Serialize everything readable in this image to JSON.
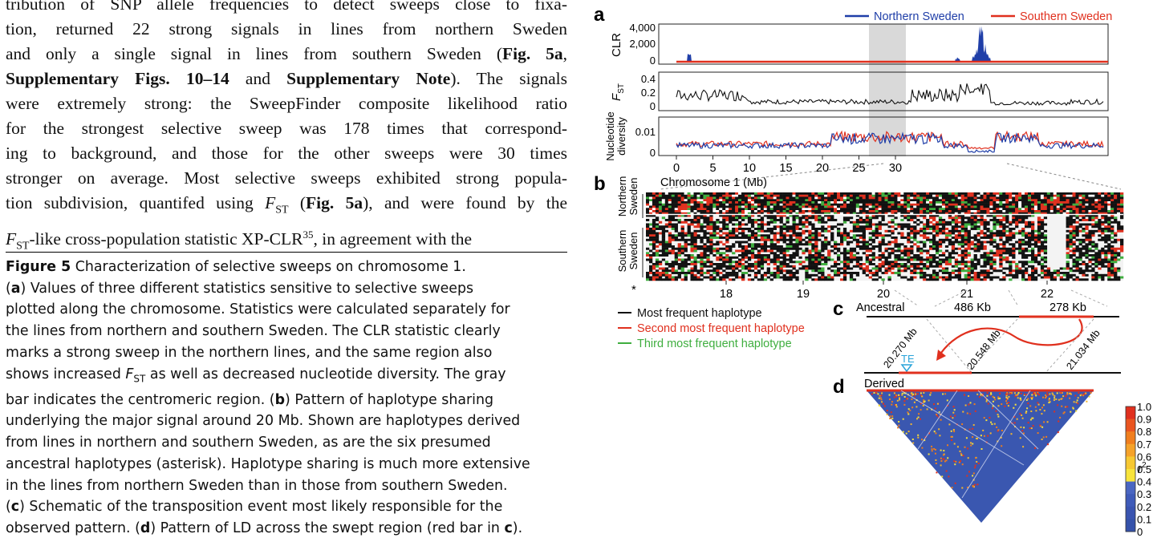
{
  "article": {
    "body_lines": [
      "tribution of SNP allele frequencies to detect sweeps close to fixa-",
      "tion, returned 22 strong signals in lines from northern Sweden",
      "and only a single signal in lines from southern Sweden (",
      "Supplementary Figs. 10–14",
      " and ",
      "Supplementary Note",
      "). The signals",
      "were extremely strong: the SweepFinder composite likelihood ratio",
      "for the strongest selective sweep was 178 times that correspond-",
      "ing to background, and those for the other sweeps were 30 times",
      "stronger on average. Most selective sweeps exhibited strong popula-",
      "tion subdivision, quantifed using ",
      "F",
      "ST",
      " (",
      "Fig. 5a",
      "), and were found by the",
      "-like cross-population statistic XP-CLR",
      "35",
      ", in agreement with the",
      "Fig. 5a",
      ","
    ]
  },
  "caption": {
    "figure_label": "Figure 5",
    "title": " Characterization of selective sweeps on chromosome 1.",
    "a": "a",
    "a_text_1": ") Values of three different statistics sensitive to selective sweeps",
    "lines": [
      "plotted along the chromosome. Statistics were calculated separately for",
      "the lines from northern and southern Sweden. The CLR statistic clearly",
      "marks a strong sweep in the northern lines, and the same region also",
      "as well as decreased nucleotide diversity. The gray",
      "bar indicates the centromeric region. (",
      "b",
      ") Pattern of haplotype sharing",
      "underlying the major signal around 20 Mb. Shown are haplotypes derived",
      "from lines in northern and southern Sweden, as are the six presumed",
      "ancestral haplotypes (asterisk). Haplotype sharing is much more extensive",
      "in the lines from northern Sweden than in those from southern Sweden.",
      "c",
      ") Schematic of the transposition event most likely responsible for the",
      "observed pattern. (",
      "d",
      ") Pattern of LD across the swept region (red bar in ",
      "c",
      ")."
    ],
    "shows_increased": "shows increased ",
    "fst_F": "F",
    "fst_sub": "ST"
  },
  "figure": {
    "panel_labels": [
      "a",
      "b",
      "c",
      "d"
    ],
    "legend_a": {
      "north": "Northern Sweden",
      "south": "Southern Sweden"
    },
    "colors": {
      "north": "#1f3ea8",
      "south": "#e0301e",
      "third": "#3fae3f",
      "black": "#111111",
      "centromere": "#d9d9d9"
    },
    "clr": {
      "ylabel": "CLR",
      "ticks": [
        "4,000",
        "2,000",
        "0"
      ]
    },
    "fst": {
      "ylabel_main": "F",
      "ylabel_sub": "ST",
      "ticks": [
        "0.4",
        "0.2",
        "0"
      ]
    },
    "diversity": {
      "ylabel_1": "Nucleotide",
      "ylabel_2": "diversity",
      "ticks": [
        "0.01",
        "0"
      ]
    },
    "x_axis": {
      "ticks": [
        "0",
        "5",
        "10",
        "15",
        "20",
        "25",
        "30"
      ],
      "label": "Chromosome 1 (Mb)"
    },
    "haplo": {
      "northern_1": "Northern",
      "northern_2": "Sweden",
      "southern_1": "Southern",
      "southern_2": "Sweden",
      "asterisk": "*",
      "x_ticks": [
        "18",
        "19",
        "20",
        "21",
        "22"
      ]
    },
    "haplo_legend": [
      "Most frequent haplotype",
      "Second most frequent haplotype",
      "Third most frequent haplotype"
    ],
    "c": {
      "ancestral": "Ancestral",
      "derived": "Derived",
      "seg1": "486 Kb",
      "seg2": "278 Kb",
      "te": "TE",
      "pos1": "20.270 Mb",
      "pos2": "20.548 Mb",
      "pos3": "21.034 Mb"
    },
    "d": {
      "scale_ticks": [
        "1.0",
        "0.9",
        "0.8",
        "0.7",
        "0.6",
        "0.5",
        "0.4",
        "0.3",
        "0.2",
        "0.1",
        "0"
      ],
      "scale_label": "r",
      "scale_sup": "2"
    }
  }
}
